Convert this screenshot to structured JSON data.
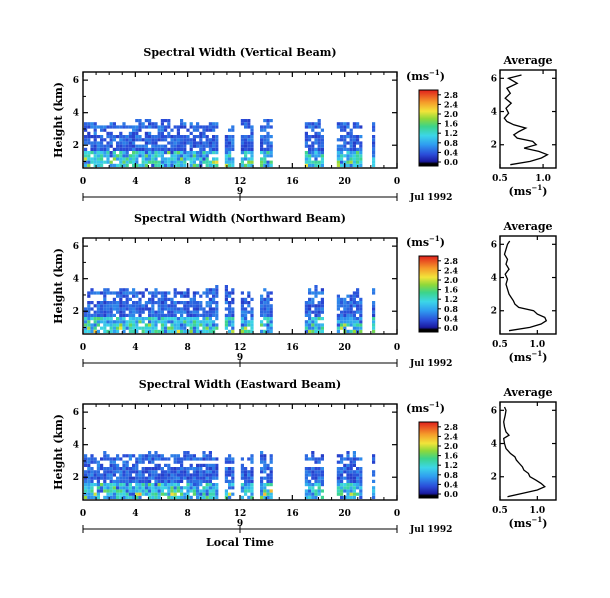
{
  "chart_data": [
    {
      "type": "heatmap",
      "title": "Spectral Width (Vertical Beam)",
      "ylabel": "Height (km)",
      "xlabel": "",
      "x_ticks": [
        "0",
        "4",
        "8",
        "12",
        "16",
        "20",
        "0"
      ],
      "y_ticks": [
        "2",
        "4",
        "6"
      ],
      "xlim": [
        0,
        24
      ],
      "ylim": [
        0.6,
        6.5
      ],
      "date_day": "9",
      "date_label": "Jul 1992",
      "unit_label": "(ms",
      "unit_exp": "−1",
      "colorbar_ticks": [
        "0.0",
        "0.4",
        "0.8",
        "1.2",
        "1.6",
        "2.0",
        "2.4",
        "2.8"
      ],
      "colorbar_range": [
        0,
        3.0
      ],
      "data_top_km": 3.5,
      "data_gaps_hours": [
        [
          10.2,
          10.6
        ],
        [
          11.4,
          11.9
        ],
        [
          12.8,
          13.5
        ],
        [
          14.3,
          16.8
        ],
        [
          18.4,
          19.3
        ],
        [
          21.2,
          21.9
        ]
      ],
      "data_end_hour": 22.2,
      "average_panel": {
        "title": "Average",
        "xlabel": "(ms",
        "xlabel_exp": "−1",
        "x_ticks": [
          "0.5",
          "1.0"
        ],
        "y_ticks": [
          "2",
          "4",
          "6"
        ],
        "xlim": [
          0.5,
          1.15
        ],
        "profile": [
          {
            "h": 0.8,
            "w": 0.62
          },
          {
            "h": 1.0,
            "w": 0.85
          },
          {
            "h": 1.2,
            "w": 0.98
          },
          {
            "h": 1.4,
            "w": 1.05
          },
          {
            "h": 1.6,
            "w": 0.95
          },
          {
            "h": 1.8,
            "w": 0.78
          },
          {
            "h": 2.0,
            "w": 0.92
          },
          {
            "h": 2.2,
            "w": 0.88
          },
          {
            "h": 2.4,
            "w": 0.7
          },
          {
            "h": 2.6,
            "w": 0.66
          },
          {
            "h": 2.8,
            "w": 0.72
          },
          {
            "h": 3.0,
            "w": 0.8
          },
          {
            "h": 3.2,
            "w": 0.66
          },
          {
            "h": 3.4,
            "w": 0.58
          },
          {
            "h": 3.6,
            "w": 0.55
          },
          {
            "h": 3.9,
            "w": 0.6
          },
          {
            "h": 4.2,
            "w": 0.57
          },
          {
            "h": 4.5,
            "w": 0.63
          },
          {
            "h": 4.8,
            "w": 0.56
          },
          {
            "h": 5.1,
            "w": 0.62
          },
          {
            "h": 5.4,
            "w": 0.58
          },
          {
            "h": 5.7,
            "w": 0.7
          },
          {
            "h": 6.0,
            "w": 0.6
          },
          {
            "h": 6.2,
            "w": 0.75
          }
        ]
      }
    },
    {
      "type": "heatmap",
      "title": "Spectral Width (Northward Beam)",
      "ylabel": "Height (km)",
      "xlabel": "",
      "x_ticks": [
        "0",
        "4",
        "8",
        "12",
        "16",
        "20",
        "0"
      ],
      "y_ticks": [
        "2",
        "4",
        "6"
      ],
      "xlim": [
        0,
        24
      ],
      "ylim": [
        0.6,
        6.5
      ],
      "date_day": "9",
      "date_label": "Jul 1992",
      "unit_label": "(ms",
      "unit_exp": "−1",
      "colorbar_ticks": [
        "0.0",
        "0.4",
        "0.8",
        "1.2",
        "1.6",
        "2.0",
        "2.4",
        "2.8"
      ],
      "colorbar_range": [
        0,
        3.0
      ],
      "data_top_km": 3.4,
      "data_gaps_hours": [
        [
          10.2,
          10.6
        ],
        [
          11.4,
          11.9
        ],
        [
          12.8,
          13.5
        ],
        [
          14.3,
          16.8
        ],
        [
          18.4,
          19.3
        ],
        [
          21.2,
          21.9
        ]
      ],
      "data_end_hour": 22.2,
      "average_panel": {
        "title": "Average",
        "xlabel": "(ms",
        "xlabel_exp": "−1",
        "x_ticks": [
          "0.5",
          "1.0"
        ],
        "y_ticks": [
          "2",
          "4",
          "6"
        ],
        "xlim": [
          0.5,
          1.25
        ],
        "profile": [
          {
            "h": 0.8,
            "w": 0.62
          },
          {
            "h": 1.0,
            "w": 0.9
          },
          {
            "h": 1.2,
            "w": 1.05
          },
          {
            "h": 1.4,
            "w": 1.12
          },
          {
            "h": 1.6,
            "w": 1.1
          },
          {
            "h": 1.8,
            "w": 1.0
          },
          {
            "h": 2.0,
            "w": 0.95
          },
          {
            "h": 2.2,
            "w": 0.75
          },
          {
            "h": 2.4,
            "w": 0.7
          },
          {
            "h": 2.6,
            "w": 0.68
          },
          {
            "h": 2.8,
            "w": 0.65
          },
          {
            "h": 3.0,
            "w": 0.62
          },
          {
            "h": 3.3,
            "w": 0.6
          },
          {
            "h": 3.6,
            "w": 0.58
          },
          {
            "h": 3.9,
            "w": 0.6
          },
          {
            "h": 4.2,
            "w": 0.57
          },
          {
            "h": 4.5,
            "w": 0.62
          },
          {
            "h": 4.8,
            "w": 0.58
          },
          {
            "h": 5.1,
            "w": 0.6
          },
          {
            "h": 5.4,
            "w": 0.56
          },
          {
            "h": 5.7,
            "w": 0.58
          },
          {
            "h": 6.0,
            "w": 0.6
          },
          {
            "h": 6.2,
            "w": 0.63
          }
        ]
      }
    },
    {
      "type": "heatmap",
      "title": "Spectral Width (Eastward Beam)",
      "ylabel": "Height (km)",
      "xlabel": "Local Time",
      "x_ticks": [
        "0",
        "4",
        "8",
        "12",
        "16",
        "20",
        "0"
      ],
      "y_ticks": [
        "2",
        "4",
        "6"
      ],
      "xlim": [
        0,
        24
      ],
      "ylim": [
        0.6,
        6.5
      ],
      "date_day": "9",
      "date_label": "Jul 1992",
      "unit_label": "(ms",
      "unit_exp": "−1",
      "colorbar_ticks": [
        "0.0",
        "0.4",
        "0.8",
        "1.2",
        "1.6",
        "2.0",
        "2.4",
        "2.8"
      ],
      "colorbar_range": [
        0,
        3.0
      ],
      "data_top_km": 3.5,
      "data_gaps_hours": [
        [
          10.2,
          10.6
        ],
        [
          11.4,
          11.9
        ],
        [
          12.8,
          13.5
        ],
        [
          14.3,
          16.8
        ],
        [
          18.4,
          19.3
        ],
        [
          21.2,
          21.9
        ]
      ],
      "data_end_hour": 22.2,
      "average_panel": {
        "title": "Average",
        "xlabel": "(ms",
        "xlabel_exp": "−1",
        "x_ticks": [
          "0.5",
          "1.0"
        ],
        "y_ticks": [
          "2",
          "4",
          "6"
        ],
        "xlim": [
          0.5,
          1.25
        ],
        "profile": [
          {
            "h": 0.8,
            "w": 0.6
          },
          {
            "h": 1.0,
            "w": 0.8
          },
          {
            "h": 1.2,
            "w": 1.0
          },
          {
            "h": 1.4,
            "w": 1.1
          },
          {
            "h": 1.6,
            "w": 1.05
          },
          {
            "h": 1.8,
            "w": 0.98
          },
          {
            "h": 2.0,
            "w": 0.9
          },
          {
            "h": 2.2,
            "w": 0.88
          },
          {
            "h": 2.4,
            "w": 0.82
          },
          {
            "h": 2.6,
            "w": 0.8
          },
          {
            "h": 2.8,
            "w": 0.76
          },
          {
            "h": 3.0,
            "w": 0.72
          },
          {
            "h": 3.2,
            "w": 0.7
          },
          {
            "h": 3.4,
            "w": 0.64
          },
          {
            "h": 3.7,
            "w": 0.58
          },
          {
            "h": 4.0,
            "w": 0.56
          },
          {
            "h": 4.3,
            "w": 0.55
          },
          {
            "h": 4.5,
            "w": 0.62
          },
          {
            "h": 4.7,
            "w": 0.58
          },
          {
            "h": 5.0,
            "w": 0.56
          },
          {
            "h": 5.3,
            "w": 0.55
          },
          {
            "h": 5.7,
            "w": 0.57
          },
          {
            "h": 6.0,
            "w": 0.58
          },
          {
            "h": 6.2,
            "w": 0.56
          }
        ]
      }
    }
  ]
}
